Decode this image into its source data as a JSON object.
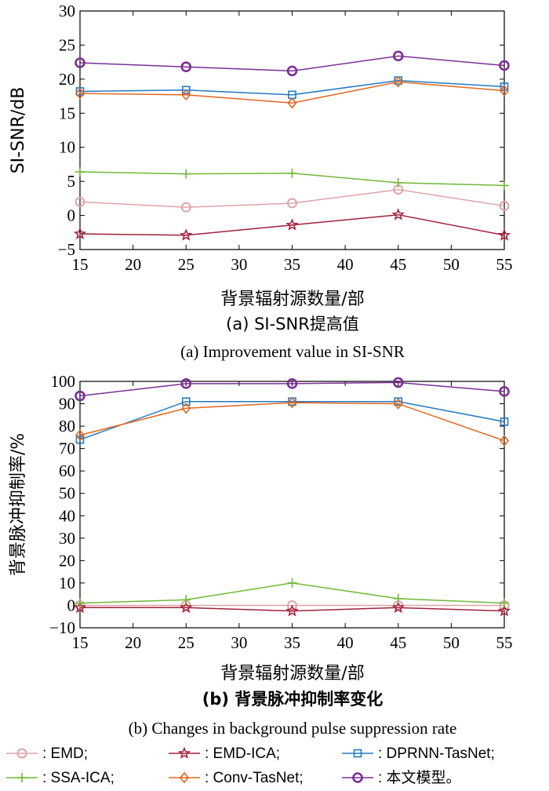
{
  "chart_data": [
    {
      "type": "line",
      "x": [
        15,
        25,
        35,
        45,
        55
      ],
      "xticks": [
        "15",
        "20",
        "25",
        "30",
        "35",
        "40",
        "45",
        "50",
        "55"
      ],
      "yticks": [
        "−5",
        "0",
        "5",
        "10",
        "15",
        "20",
        "25",
        "30"
      ],
      "xlim": [
        15,
        55
      ],
      "ylim": [
        -5,
        30
      ],
      "xlabel": "背景辐射源数量/部",
      "ylabel": "SI-SNR/dB",
      "caption_cn": "(a) SI-SNR提高值",
      "caption_en": "(a) Improvement value in SI-SNR",
      "series": [
        {
          "name": "EMD",
          "values": [
            2.0,
            1.2,
            1.8,
            3.8,
            1.4
          ]
        },
        {
          "name": "EMD-ICA",
          "values": [
            -2.7,
            -2.9,
            -1.4,
            0.1,
            -2.9
          ]
        },
        {
          "name": "DPRNN-TasNet",
          "values": [
            18.2,
            18.4,
            17.7,
            19.8,
            18.9
          ]
        },
        {
          "name": "SSA-ICA",
          "values": [
            6.4,
            6.1,
            6.2,
            4.8,
            4.4
          ]
        },
        {
          "name": "Conv-TasNet",
          "values": [
            17.9,
            17.7,
            16.5,
            19.6,
            18.3
          ]
        },
        {
          "name": "本文模型",
          "values": [
            22.4,
            21.8,
            21.2,
            23.4,
            22.0
          ]
        }
      ]
    },
    {
      "type": "line",
      "x": [
        15,
        25,
        35,
        45,
        55
      ],
      "xticks": [
        "15",
        "20",
        "25",
        "30",
        "35",
        "40",
        "45",
        "50",
        "55"
      ],
      "yticks": [
        "−10",
        "0",
        "10",
        "20",
        "30",
        "40",
        "50",
        "60",
        "70",
        "80",
        "90",
        "100"
      ],
      "xlim": [
        15,
        55
      ],
      "ylim": [
        -10,
        100
      ],
      "xlabel": "背景辐射源数量/部",
      "ylabel": "背景脉冲抑制率/%",
      "caption_cn": "(b) 背景脉冲抑制率变化",
      "caption_en": "(b) Changes in background pulse suppression rate",
      "series": [
        {
          "name": "EMD",
          "values": [
            0,
            0,
            0,
            0,
            0
          ]
        },
        {
          "name": "EMD-ICA",
          "values": [
            -1,
            -1,
            -2.5,
            -1,
            -2.5
          ]
        },
        {
          "name": "DPRNN-TasNet",
          "values": [
            74,
            91,
            91,
            91,
            82
          ]
        },
        {
          "name": "SSA-ICA",
          "values": [
            1,
            2.5,
            10,
            3,
            1
          ]
        },
        {
          "name": "Conv-TasNet",
          "values": [
            76,
            88,
            90.5,
            90,
            73.5
          ]
        },
        {
          "name": "本文模型",
          "values": [
            93.5,
            99,
            99,
            99.5,
            95.5
          ]
        }
      ]
    }
  ],
  "styles": [
    {
      "name": "EMD",
      "color": "#e0a3a8",
      "marker": "circle"
    },
    {
      "name": "EMD-ICA",
      "color": "#a2203a",
      "marker": "star"
    },
    {
      "name": "DPRNN-TasNet",
      "color": "#2379c2",
      "marker": "square"
    },
    {
      "name": "SSA-ICA",
      "color": "#71b935",
      "marker": "plus"
    },
    {
      "name": "Conv-TasNet",
      "color": "#e3671e",
      "marker": "diamond"
    },
    {
      "name": "本文模型",
      "color": "#7b2f96",
      "marker": "circle-bold"
    }
  ],
  "legend": [
    {
      "label": ": EMD;"
    },
    {
      "label": ": EMD-ICA;"
    },
    {
      "label": ": DPRNN-TasNet;"
    },
    {
      "label": ": SSA-ICA;"
    },
    {
      "label": ": Conv-TasNet;"
    },
    {
      "label": ": 本文模型。"
    }
  ]
}
